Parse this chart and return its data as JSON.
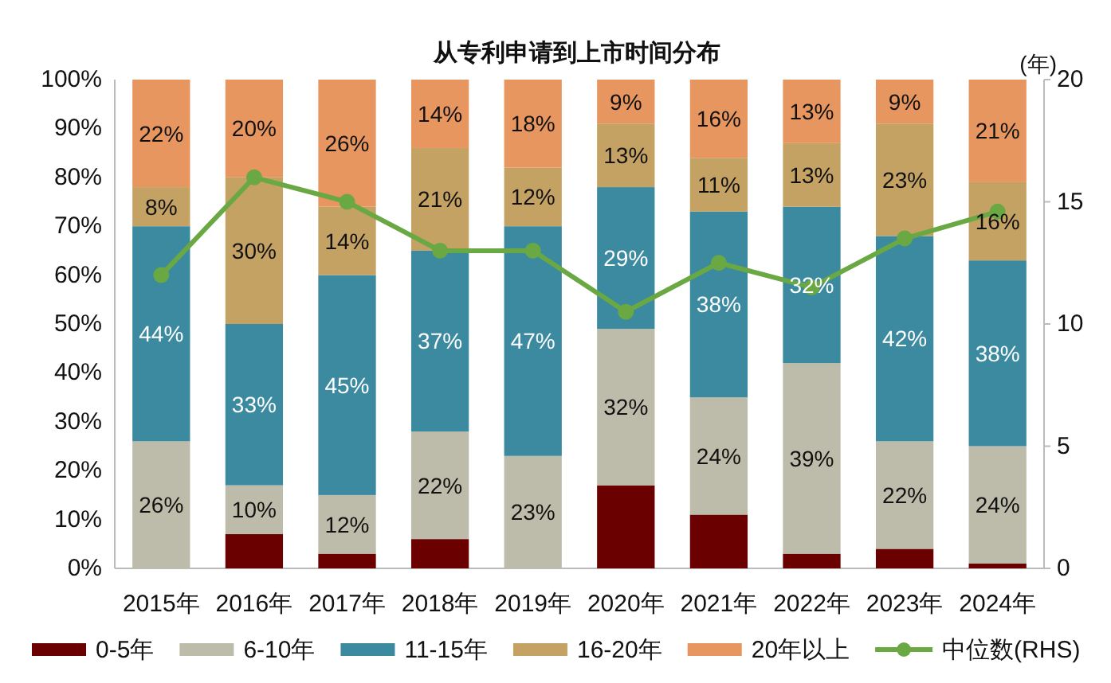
{
  "chart_data": {
    "type": "bar",
    "stacked": true,
    "title": "从专利申请到上市时间分布",
    "y2label": "(年)",
    "categories": [
      "2015年",
      "2016年",
      "2017年",
      "2018年",
      "2019年",
      "2020年",
      "2021年",
      "2022年",
      "2023年",
      "2024年"
    ],
    "ylim": [
      0,
      100
    ],
    "yticks": [
      {
        "value": 0,
        "label": "0%"
      },
      {
        "value": 10,
        "label": "10%"
      },
      {
        "value": 20,
        "label": "20%"
      },
      {
        "value": 30,
        "label": "30%"
      },
      {
        "value": 40,
        "label": "40%"
      },
      {
        "value": 50,
        "label": "50%"
      },
      {
        "value": 60,
        "label": "60%"
      },
      {
        "value": 70,
        "label": "70%"
      },
      {
        "value": 80,
        "label": "80%"
      },
      {
        "value": 90,
        "label": "90%"
      },
      {
        "value": 100,
        "label": "100%"
      }
    ],
    "y2lim": [
      0,
      20
    ],
    "y2ticks": [
      0,
      5,
      10,
      15,
      20
    ],
    "legend": "bottom",
    "marker": "circle",
    "series": [
      {
        "name": "0-5年",
        "color": "#6b0000",
        "values": [
          0,
          7,
          3,
          6,
          0,
          17,
          11,
          3,
          4,
          1
        ]
      },
      {
        "name": "6-10年",
        "color": "#bdbcaa",
        "values": [
          26,
          10,
          12,
          22,
          23,
          32,
          24,
          39,
          22,
          24
        ],
        "value_labels": [
          "26%",
          "10%",
          "12%",
          "22%",
          "23%",
          "32%",
          "24%",
          "39%",
          "22%",
          "24%"
        ]
      },
      {
        "name": "11-15年",
        "color": "#3b8aa0",
        "values": [
          44,
          33,
          45,
          37,
          47,
          29,
          38,
          32,
          42,
          38
        ],
        "value_labels": [
          "44%",
          "33%",
          "45%",
          "37%",
          "47%",
          "29%",
          "38%",
          "32%",
          "42%",
          "38%"
        ]
      },
      {
        "name": "16-20年",
        "color": "#c4a264",
        "values": [
          8,
          30,
          14,
          21,
          12,
          13,
          11,
          13,
          23,
          16
        ],
        "value_labels": [
          "8%",
          "30%",
          "14%",
          "21%",
          "12%",
          "13%",
          "11%",
          "13%",
          "23%",
          "16%"
        ]
      },
      {
        "name": "20年以上",
        "color": "#e8965f",
        "values": [
          22,
          20,
          26,
          14,
          18,
          9,
          16,
          13,
          9,
          21
        ],
        "value_labels": [
          "22%",
          "20%",
          "26%",
          "14%",
          "18%",
          "9%",
          "16%",
          "13%",
          "9%",
          "21%"
        ]
      },
      {
        "name": "中位数(RHS)",
        "type": "line",
        "axis": "y2",
        "color": "#6aa843",
        "values": [
          12,
          16,
          15,
          13,
          13,
          10.5,
          12.5,
          11.5,
          13.5,
          14.6
        ]
      }
    ]
  }
}
